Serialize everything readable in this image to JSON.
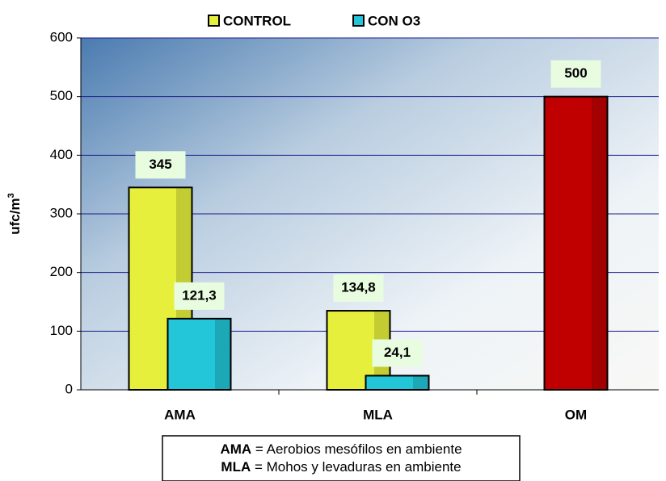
{
  "chart_data": {
    "type": "bar",
    "y_label": {
      "text": "ufc/m",
      "superscript": "3"
    },
    "categories": [
      "AMA",
      "MLA",
      "OM"
    ],
    "series": [
      {
        "name": "CONTROL",
        "color": "#e6f03c",
        "values": [
          345,
          134.8,
          null
        ],
        "value_labels": [
          "345",
          "134,8",
          null
        ]
      },
      {
        "color": "#c00000",
        "values": [
          null,
          null,
          500
        ],
        "value_labels": [
          null,
          null,
          "500"
        ]
      },
      {
        "name": "CON O3",
        "color": "#22c6d8",
        "values": [
          121.3,
          24.1,
          null
        ],
        "value_labels": [
          "121,3",
          "24,1",
          null
        ]
      }
    ],
    "ylim": [
      0,
      600
    ],
    "yticks": [
      0,
      100,
      200,
      300,
      400,
      500,
      600
    ],
    "grid": true,
    "notes": [
      {
        "term": "AMA",
        "definition": "= Aerobios mesófilos en ambiente"
      },
      {
        "term": "MLA",
        "definition": "= Mohos y levaduras en ambiente"
      }
    ]
  }
}
